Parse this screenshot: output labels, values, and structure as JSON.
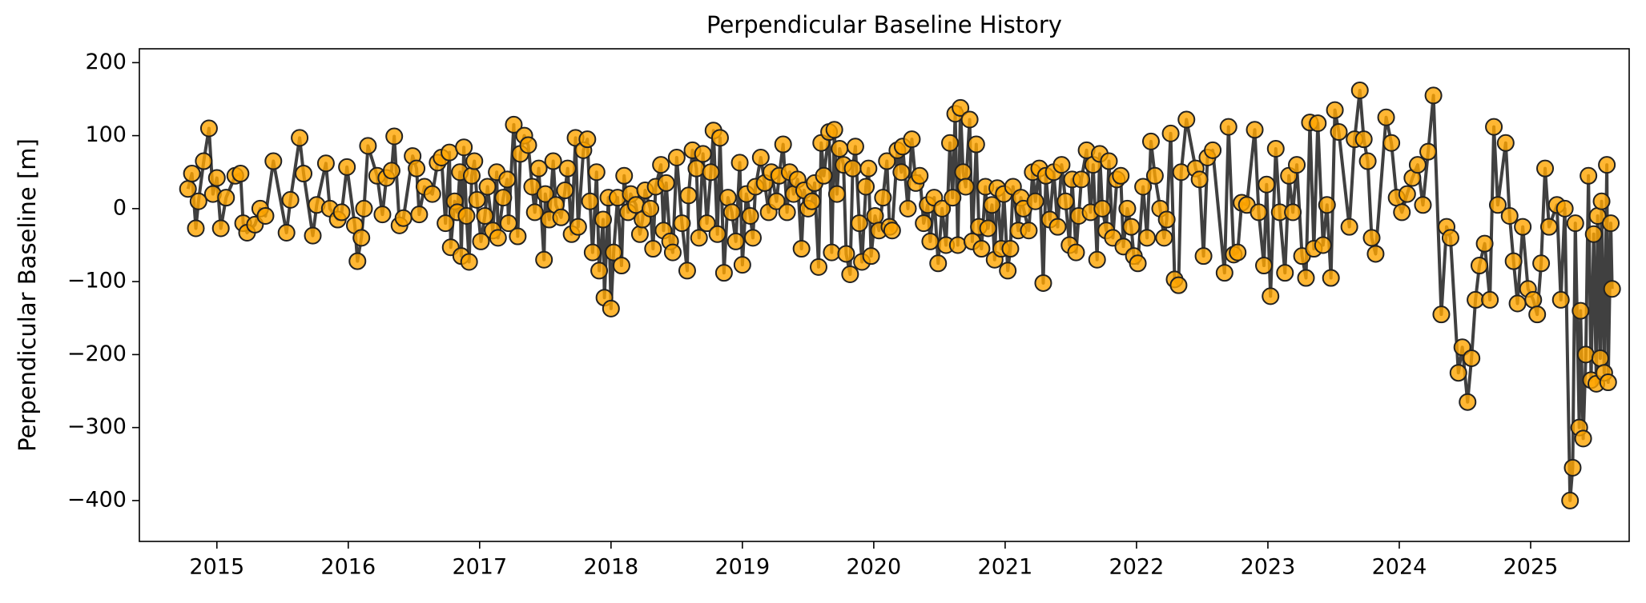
{
  "chart_data": {
    "type": "line",
    "title": "Perpendicular Baseline History",
    "ylabel": "Perpendicular Baseline [m]",
    "color": "#404040",
    "marker_color": "#ffa500",
    "xlim": [
      2014.41,
      2025.75
    ],
    "ylim": [
      -456,
      219
    ],
    "xticks": [
      2015,
      2016,
      2017,
      2018,
      2019,
      2020,
      2021,
      2022,
      2023,
      2024,
      2025
    ],
    "yticks": [
      {
        "value": -400,
        "label": "−400"
      },
      {
        "value": -300,
        "label": "−300"
      },
      {
        "value": -200,
        "label": "−200"
      },
      {
        "value": -100,
        "label": "−100"
      },
      0,
      100,
      200
    ],
    "x": [
      2014.78,
      2014.81,
      2014.84,
      2014.86,
      2014.9,
      2014.94,
      2014.97,
      2015.0,
      2015.03,
      2015.07,
      2015.14,
      2015.18,
      2015.2,
      2015.23,
      2015.29,
      2015.33,
      2015.37,
      2015.43,
      2015.53,
      2015.56,
      2015.63,
      2015.66,
      2015.73,
      2015.76,
      2015.83,
      2015.86,
      2015.92,
      2015.95,
      2015.99,
      2016.05,
      2016.07,
      2016.1,
      2016.12,
      2016.15,
      2016.22,
      2016.26,
      2016.29,
      2016.33,
      2016.35,
      2016.39,
      2016.42,
      2016.49,
      2016.52,
      2016.54,
      2016.58,
      2016.64,
      2016.68,
      2016.71,
      2016.74,
      2016.77,
      2016.78,
      2016.81,
      2016.83,
      2016.85,
      2016.86,
      2016.88,
      2016.9,
      2016.92,
      2016.94,
      2016.96,
      2016.98,
      2017.01,
      2017.04,
      2017.06,
      2017.1,
      2017.13,
      2017.14,
      2017.18,
      2017.21,
      2017.22,
      2017.26,
      2017.29,
      2017.31,
      2017.34,
      2017.37,
      2017.4,
      2017.42,
      2017.45,
      2017.49,
      2017.5,
      2017.53,
      2017.56,
      2017.58,
      2017.62,
      2017.65,
      2017.67,
      2017.7,
      2017.73,
      2017.75,
      2017.79,
      2017.82,
      2017.84,
      2017.86,
      2017.89,
      2017.91,
      2017.94,
      2017.95,
      2017.98,
      2018.0,
      2018.02,
      2018.05,
      2018.08,
      2018.1,
      2018.13,
      2018.15,
      2018.19,
      2018.22,
      2018.24,
      2018.26,
      2018.3,
      2018.32,
      2018.34,
      2018.38,
      2018.4,
      2018.42,
      2018.45,
      2018.47,
      2018.5,
      2018.54,
      2018.58,
      2018.59,
      2018.62,
      2018.65,
      2018.67,
      2018.7,
      2018.73,
      2018.76,
      2018.78,
      2018.81,
      2018.83,
      2018.86,
      2018.89,
      2018.92,
      2018.95,
      2018.98,
      2019.0,
      2019.03,
      2019.06,
      2019.08,
      2019.1,
      2019.14,
      2019.17,
      2019.2,
      2019.22,
      2019.26,
      2019.28,
      2019.31,
      2019.34,
      2019.36,
      2019.39,
      2019.42,
      2019.45,
      2019.47,
      2019.5,
      2019.53,
      2019.55,
      2019.58,
      2019.6,
      2019.62,
      2019.66,
      2019.68,
      2019.7,
      2019.72,
      2019.74,
      2019.77,
      2019.79,
      2019.82,
      2019.84,
      2019.86,
      2019.89,
      2019.91,
      2019.94,
      2019.96,
      2019.98,
      2020.01,
      2020.04,
      2020.07,
      2020.1,
      2020.12,
      2020.14,
      2020.18,
      2020.21,
      2020.22,
      2020.26,
      2020.29,
      2020.32,
      2020.35,
      2020.38,
      2020.41,
      2020.43,
      2020.46,
      2020.49,
      2020.52,
      2020.55,
      2020.58,
      2020.6,
      2020.62,
      2020.64,
      2020.66,
      2020.68,
      2020.7,
      2020.73,
      2020.75,
      2020.78,
      2020.8,
      2020.82,
      2020.85,
      2020.87,
      2020.9,
      2020.92,
      2020.94,
      2020.97,
      2020.99,
      2021.02,
      2021.04,
      2021.06,
      2021.1,
      2021.12,
      2021.14,
      2021.18,
      2021.21,
      2021.23,
      2021.26,
      2021.29,
      2021.31,
      2021.34,
      2021.37,
      2021.4,
      2021.43,
      2021.46,
      2021.49,
      2021.51,
      2021.54,
      2021.56,
      2021.58,
      2021.62,
      2021.65,
      2021.67,
      2021.7,
      2021.72,
      2021.74,
      2021.77,
      2021.79,
      2021.82,
      2021.85,
      2021.88,
      2021.9,
      2021.93,
      2021.96,
      2021.98,
      2022.01,
      2022.05,
      2022.08,
      2022.11,
      2022.14,
      2022.18,
      2022.21,
      2022.23,
      2022.26,
      2022.29,
      2022.32,
      2022.34,
      2022.38,
      2022.45,
      2022.48,
      2022.51,
      2022.54,
      2022.58,
      2022.67,
      2022.7,
      2022.74,
      2022.77,
      2022.8,
      2022.84,
      2022.9,
      2022.93,
      2022.97,
      2022.99,
      2023.02,
      2023.06,
      2023.09,
      2023.13,
      2023.16,
      2023.19,
      2023.22,
      2023.26,
      2023.29,
      2023.32,
      2023.35,
      2023.38,
      2023.42,
      2023.45,
      2023.48,
      2023.51,
      2023.54,
      2023.62,
      2023.66,
      2023.7,
      2023.73,
      2023.76,
      2023.79,
      2023.82,
      2023.9,
      2023.94,
      2023.98,
      2024.02,
      2024.06,
      2024.1,
      2024.14,
      2024.18,
      2024.22,
      2024.26,
      2024.32,
      2024.36,
      2024.39,
      2024.45,
      2024.48,
      2024.52,
      2024.55,
      2024.58,
      2024.61,
      2024.65,
      2024.69,
      2024.72,
      2024.75,
      2024.81,
      2024.84,
      2024.87,
      2024.9,
      2024.94,
      2024.98,
      2025.02,
      2025.05,
      2025.08,
      2025.11,
      2025.14,
      2025.2,
      2025.23,
      2025.26,
      2025.3,
      2025.32,
      2025.34,
      2025.37,
      2025.38,
      2025.4,
      2025.42,
      2025.44,
      2025.46,
      2025.48,
      2025.5,
      2025.51,
      2025.53,
      2025.54,
      2025.56,
      2025.58,
      2025.59,
      2025.61,
      2025.62
    ],
    "values": [
      27,
      48,
      -27,
      10,
      65,
      110,
      20,
      42,
      -27,
      15,
      45,
      48,
      -20,
      -33,
      -22,
      0,
      -10,
      65,
      -33,
      12,
      97,
      48,
      -37,
      5,
      62,
      0,
      -15,
      -5,
      57,
      -23,
      -72,
      -40,
      0,
      86,
      45,
      -8,
      42,
      52,
      99,
      -23,
      -13,
      72,
      55,
      -8,
      30,
      20,
      63,
      70,
      -20,
      77,
      -53,
      10,
      -5,
      50,
      -65,
      84,
      -10,
      -73,
      45,
      65,
      12,
      -45,
      -10,
      30,
      -30,
      50,
      -40,
      15,
      40,
      -20,
      115,
      -38,
      75,
      100,
      87,
      30,
      -5,
      55,
      -70,
      20,
      -15,
      65,
      5,
      -12,
      25,
      55,
      -35,
      97,
      -25,
      80,
      95,
      10,
      -60,
      50,
      -85,
      -15,
      -122,
      15,
      -137,
      -60,
      15,
      -78,
      45,
      -5,
      20,
      5,
      -35,
      -15,
      25,
      0,
      -55,
      30,
      60,
      -30,
      35,
      -45,
      -60,
      70,
      -20,
      -85,
      18,
      80,
      55,
      -40,
      75,
      -20,
      50,
      107,
      -35,
      97,
      -88,
      15,
      -5,
      -45,
      63,
      -77,
      20,
      -10,
      -40,
      30,
      70,
      35,
      -5,
      50,
      10,
      45,
      88,
      -5,
      50,
      20,
      40,
      -55,
      25,
      0,
      10,
      35,
      -80,
      90,
      45,
      105,
      -60,
      108,
      20,
      82,
      60,
      -62,
      -90,
      55,
      85,
      -20,
      -73,
      30,
      55,
      -65,
      -10,
      -30,
      15,
      65,
      -25,
      -30,
      80,
      50,
      85,
      0,
      95,
      35,
      45,
      -20,
      5,
      -45,
      15,
      -75,
      0,
      -50,
      90,
      15,
      130,
      -50,
      138,
      50,
      30,
      122,
      -45,
      88,
      -25,
      -55,
      30,
      -27,
      5,
      -70,
      28,
      -55,
      20,
      -85,
      -55,
      30,
      -30,
      15,
      0,
      -30,
      50,
      10,
      55,
      -102,
      45,
      -15,
      50,
      -25,
      60,
      10,
      -50,
      40,
      -60,
      -10,
      40,
      80,
      -5,
      60,
      -70,
      75,
      0,
      -30,
      65,
      -40,
      40,
      45,
      -52,
      0,
      -25,
      -65,
      -75,
      30,
      -40,
      92,
      45,
      0,
      -40,
      -15,
      103,
      -97,
      -105,
      50,
      122,
      55,
      40,
      -65,
      70,
      80,
      -88,
      112,
      -63,
      -60,
      8,
      5,
      108,
      -5,
      -78,
      33,
      -120,
      82,
      -5,
      -88,
      45,
      -5,
      60,
      -65,
      -95,
      118,
      -55,
      117,
      -50,
      5,
      -95,
      135,
      105,
      -25,
      95,
      162,
      95,
      65,
      -40,
      -62,
      125,
      90,
      15,
      -5,
      20,
      42,
      60,
      5,
      78,
      155,
      -145,
      -25,
      -40,
      -225,
      -190,
      -265,
      -205,
      -125,
      -78,
      -48,
      -125,
      112,
      5,
      90,
      -10,
      -72,
      -130,
      -25,
      -110,
      -125,
      -145,
      -75,
      55,
      -25,
      5,
      -125,
      0,
      -400,
      -355,
      -20,
      -300,
      -140,
      -315,
      -200,
      45,
      -235,
      -35,
      -240,
      -10,
      -205,
      10,
      -225,
      60,
      -238,
      -20,
      -110
    ]
  }
}
